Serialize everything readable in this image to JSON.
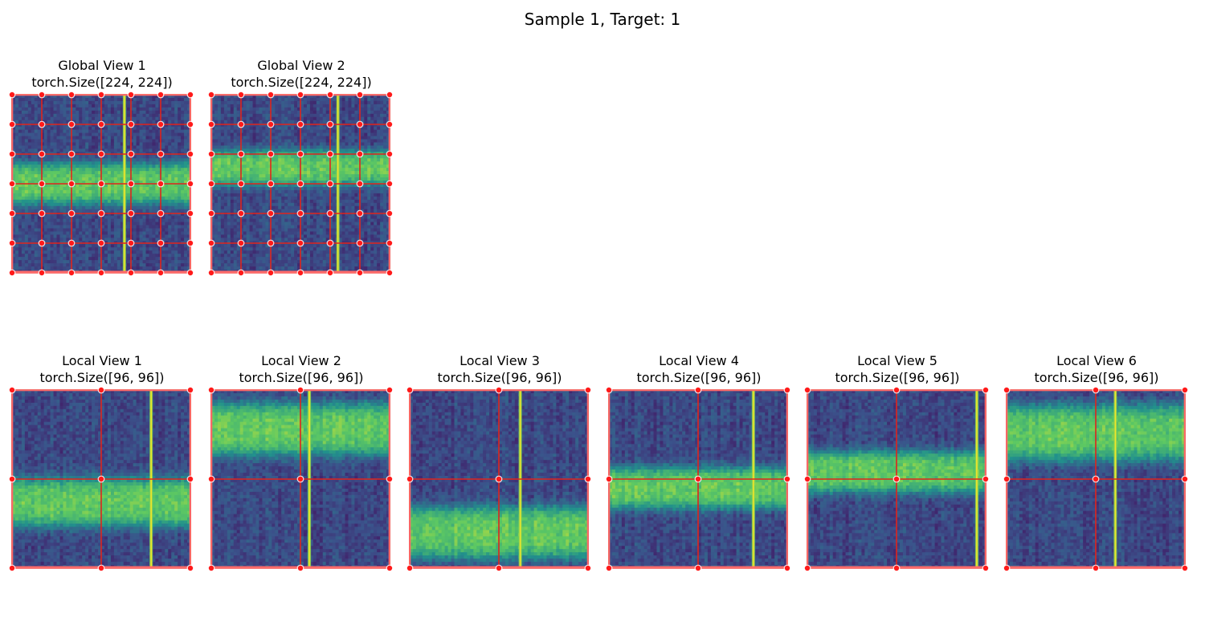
{
  "figure": {
    "title": "Sample 1, Target: 1"
  },
  "colors": {
    "grid": "#e0241c",
    "dot_fill": "#ff1a1a",
    "dot_ring": "#ffffff",
    "border": "#ff6a6a",
    "colormap": [
      "#440154",
      "#3b528b",
      "#21918c",
      "#5ec962",
      "#fde725"
    ]
  },
  "chart_data": [
    {
      "type": "heatmap",
      "view": "global",
      "title": "Global View 1",
      "subtitle": "torch.Size([224, 224])",
      "size": [
        224,
        224
      ],
      "grid_divisions": 6,
      "bands": [
        {
          "center": 0.5,
          "half_width": 0.12
        }
      ],
      "vline": 0.63
    },
    {
      "type": "heatmap",
      "view": "global",
      "title": "Global View 2",
      "subtitle": "torch.Size([224, 224])",
      "size": [
        224,
        224
      ],
      "grid_divisions": 6,
      "bands": [
        {
          "center": 0.41,
          "half_width": 0.1
        }
      ],
      "vline": 0.71
    },
    {
      "type": "heatmap",
      "view": "local",
      "title": "Local View 1",
      "subtitle": "torch.Size([96, 96])",
      "size": [
        96,
        96
      ],
      "grid_divisions": 2,
      "bands": [
        {
          "center": 0.63,
          "half_width": 0.14
        }
      ],
      "vline": 0.78
    },
    {
      "type": "heatmap",
      "view": "local",
      "title": "Local View 2",
      "subtitle": "torch.Size([96, 96])",
      "size": [
        96,
        96
      ],
      "grid_divisions": 2,
      "bands": [
        {
          "center": 0.22,
          "half_width": 0.15
        }
      ],
      "vline": 0.55
    },
    {
      "type": "heatmap",
      "view": "local",
      "title": "Local View 3",
      "subtitle": "torch.Size([96, 96])",
      "size": [
        96,
        96
      ],
      "grid_divisions": 2,
      "bands": [
        {
          "center": 0.8,
          "half_width": 0.15
        }
      ],
      "vline": 0.62
    },
    {
      "type": "heatmap",
      "view": "local",
      "title": "Local View 4",
      "subtitle": "torch.Size([96, 96])",
      "size": [
        96,
        96
      ],
      "grid_divisions": 2,
      "bands": [
        {
          "center": 0.55,
          "half_width": 0.12
        }
      ],
      "vline": 0.81
    },
    {
      "type": "heatmap",
      "view": "local",
      "title": "Local View 5",
      "subtitle": "torch.Size([96, 96])",
      "size": [
        96,
        96
      ],
      "grid_divisions": 2,
      "bands": [
        {
          "center": 0.46,
          "half_width": 0.12
        }
      ],
      "vline": 0.95
    },
    {
      "type": "heatmap",
      "view": "local",
      "title": "Local View 6",
      "subtitle": "torch.Size([96, 96])",
      "size": [
        96,
        96
      ],
      "grid_divisions": 2,
      "bands": [
        {
          "center": 0.24,
          "half_width": 0.16
        }
      ],
      "vline": 0.61
    }
  ]
}
